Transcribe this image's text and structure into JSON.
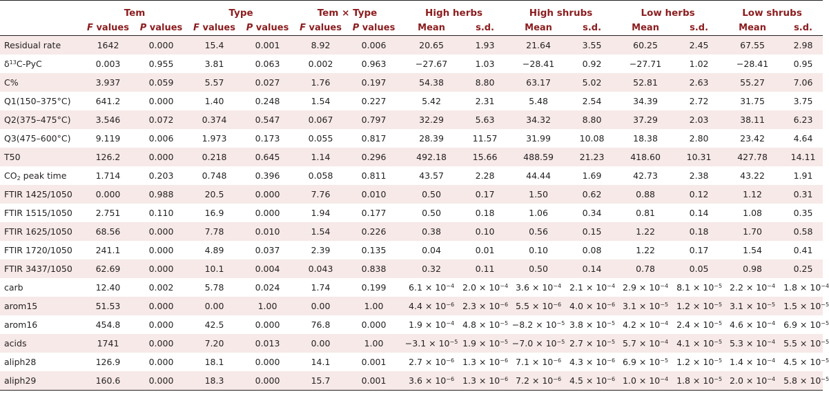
{
  "groups": {
    "tem": "Tem",
    "type": "Type",
    "interaction": "Tem × Type",
    "high_herbs": "High herbs",
    "high_shrubs": "High shrubs",
    "low_herbs": "Low herbs",
    "low_shrubs": "Low shrubs"
  },
  "subheaders": {
    "f_letter": "F",
    "p_letter": "P",
    "values_word": " values",
    "mean": "Mean",
    "sd": "s.d."
  },
  "rows": [
    {
      "label": "Residual rate",
      "cells": [
        {
          "t": "1642"
        },
        {
          "t": "0.000"
        },
        {
          "t": "15.4"
        },
        {
          "t": "0.001"
        },
        {
          "t": "8.92"
        },
        {
          "t": "0.006"
        },
        {
          "t": "20.65"
        },
        {
          "t": "1.93"
        },
        {
          "t": "21.64"
        },
        {
          "t": "3.55"
        },
        {
          "t": "60.25"
        },
        {
          "t": "2.45"
        },
        {
          "t": "67.55"
        },
        {
          "t": "2.98"
        }
      ]
    },
    {
      "label_pre": "δ",
      "label_sup": "13",
      "label_post": "C-PyC",
      "cells": [
        {
          "t": "0.003"
        },
        {
          "t": "0.955"
        },
        {
          "t": "3.81"
        },
        {
          "t": "0.063"
        },
        {
          "t": "0.002"
        },
        {
          "t": "0.963"
        },
        {
          "t": "−27.67"
        },
        {
          "t": "1.03"
        },
        {
          "t": "−28.41"
        },
        {
          "t": "0.92"
        },
        {
          "t": "−27.71"
        },
        {
          "t": "1.02"
        },
        {
          "t": "−28.41"
        },
        {
          "t": "0.95"
        }
      ]
    },
    {
      "label": "C%",
      "cells": [
        {
          "t": "3.937"
        },
        {
          "t": "0.059"
        },
        {
          "t": "5.57"
        },
        {
          "t": "0.027"
        },
        {
          "t": "1.76"
        },
        {
          "t": "0.197"
        },
        {
          "t": "54.38"
        },
        {
          "t": "8.80"
        },
        {
          "t": "63.17"
        },
        {
          "t": "5.02"
        },
        {
          "t": "52.81"
        },
        {
          "t": "2.63"
        },
        {
          "t": "55.27"
        },
        {
          "t": "7.06"
        }
      ]
    },
    {
      "label": "Q1(150–375°C)",
      "cells": [
        {
          "t": "641.2"
        },
        {
          "t": "0.000"
        },
        {
          "t": "1.40"
        },
        {
          "t": "0.248"
        },
        {
          "t": "1.54"
        },
        {
          "t": "0.227"
        },
        {
          "t": "5.42"
        },
        {
          "t": "2.31"
        },
        {
          "t": "5.48"
        },
        {
          "t": "2.54"
        },
        {
          "t": "34.39"
        },
        {
          "t": "2.72"
        },
        {
          "t": "31.75"
        },
        {
          "t": "3.75"
        }
      ]
    },
    {
      "label": "Q2(375–475°C)",
      "cells": [
        {
          "t": "3.546"
        },
        {
          "t": "0.072"
        },
        {
          "t": "0.374"
        },
        {
          "t": "0.547"
        },
        {
          "t": "0.067"
        },
        {
          "t": "0.797"
        },
        {
          "t": "32.29"
        },
        {
          "t": "5.63"
        },
        {
          "t": "34.32"
        },
        {
          "t": "8.80"
        },
        {
          "t": "37.29"
        },
        {
          "t": "2.03"
        },
        {
          "t": "38.11"
        },
        {
          "t": "6.23"
        }
      ]
    },
    {
      "label": "Q3(475–600°C)",
      "cells": [
        {
          "t": "9.119"
        },
        {
          "t": "0.006"
        },
        {
          "t": "1.973"
        },
        {
          "t": "0.173"
        },
        {
          "t": "0.055"
        },
        {
          "t": "0.817"
        },
        {
          "t": "28.39"
        },
        {
          "t": "11.57"
        },
        {
          "t": "31.99"
        },
        {
          "t": "10.08"
        },
        {
          "t": "18.38"
        },
        {
          "t": "2.80"
        },
        {
          "t": "23.42"
        },
        {
          "t": "4.64"
        }
      ]
    },
    {
      "label": "T50",
      "cells": [
        {
          "t": "126.2"
        },
        {
          "t": "0.000"
        },
        {
          "t": "0.218"
        },
        {
          "t": "0.645"
        },
        {
          "t": "1.14"
        },
        {
          "t": "0.296"
        },
        {
          "t": "492.18"
        },
        {
          "t": "15.66"
        },
        {
          "t": "488.59"
        },
        {
          "t": "21.23"
        },
        {
          "t": "418.60"
        },
        {
          "t": "10.31"
        },
        {
          "t": "427.78"
        },
        {
          "t": "14.11"
        }
      ]
    },
    {
      "label_pre": "CO",
      "label_sub": "2",
      "label_post": " peak time",
      "cells": [
        {
          "t": "1.714"
        },
        {
          "t": "0.203"
        },
        {
          "t": "0.748"
        },
        {
          "t": "0.396"
        },
        {
          "t": "0.058"
        },
        {
          "t": "0.811"
        },
        {
          "t": "43.57"
        },
        {
          "t": "2.28"
        },
        {
          "t": "44.44"
        },
        {
          "t": "1.69"
        },
        {
          "t": "42.73"
        },
        {
          "t": "2.38"
        },
        {
          "t": "43.22"
        },
        {
          "t": "1.91"
        }
      ]
    },
    {
      "label": "FTIR 1425/1050",
      "cells": [
        {
          "t": "0.000"
        },
        {
          "t": "0.988"
        },
        {
          "t": "20.5"
        },
        {
          "t": "0.000"
        },
        {
          "t": "7.76"
        },
        {
          "t": "0.010"
        },
        {
          "t": "0.50"
        },
        {
          "t": "0.17"
        },
        {
          "t": "1.50"
        },
        {
          "t": "0.62"
        },
        {
          "t": "0.88"
        },
        {
          "t": "0.12"
        },
        {
          "t": "1.12"
        },
        {
          "t": "0.31"
        }
      ]
    },
    {
      "label": "FTIR 1515/1050",
      "cells": [
        {
          "t": "2.751"
        },
        {
          "t": "0.110"
        },
        {
          "t": "16.9"
        },
        {
          "t": "0.000"
        },
        {
          "t": "1.94"
        },
        {
          "t": "0.177"
        },
        {
          "t": "0.50"
        },
        {
          "t": "0.18"
        },
        {
          "t": "1.06"
        },
        {
          "t": "0.34"
        },
        {
          "t": "0.81"
        },
        {
          "t": "0.14"
        },
        {
          "t": "1.08"
        },
        {
          "t": "0.35"
        }
      ]
    },
    {
      "label": "FTIR 1625/1050",
      "cells": [
        {
          "t": "68.56"
        },
        {
          "t": "0.000"
        },
        {
          "t": "7.78"
        },
        {
          "t": "0.010"
        },
        {
          "t": "1.54"
        },
        {
          "t": "0.226"
        },
        {
          "t": "0.38"
        },
        {
          "t": "0.10"
        },
        {
          "t": "0.56"
        },
        {
          "t": "0.15"
        },
        {
          "t": "1.22"
        },
        {
          "t": "0.18"
        },
        {
          "t": "1.70"
        },
        {
          "t": "0.58"
        }
      ]
    },
    {
      "label": "FTIR 1720/1050",
      "cells": [
        {
          "t": "241.1"
        },
        {
          "t": "0.000"
        },
        {
          "t": "4.89"
        },
        {
          "t": "0.037"
        },
        {
          "t": "2.39"
        },
        {
          "t": "0.135"
        },
        {
          "t": "0.04"
        },
        {
          "t": "0.01"
        },
        {
          "t": "0.10"
        },
        {
          "t": "0.08"
        },
        {
          "t": "1.22"
        },
        {
          "t": "0.17"
        },
        {
          "t": "1.54"
        },
        {
          "t": "0.41"
        }
      ]
    },
    {
      "label": "FTIR 3437/1050",
      "cells": [
        {
          "t": "62.69"
        },
        {
          "t": "0.000"
        },
        {
          "t": "10.1"
        },
        {
          "t": "0.004"
        },
        {
          "t": "0.043"
        },
        {
          "t": "0.838"
        },
        {
          "t": "0.32"
        },
        {
          "t": "0.11"
        },
        {
          "t": "0.50"
        },
        {
          "t": "0.14"
        },
        {
          "t": "0.78"
        },
        {
          "t": "0.05"
        },
        {
          "t": "0.98"
        },
        {
          "t": "0.25"
        }
      ]
    },
    {
      "label": "carb",
      "cells": [
        {
          "t": "12.40"
        },
        {
          "t": "0.002"
        },
        {
          "t": "5.78"
        },
        {
          "t": "0.024"
        },
        {
          "t": "1.74"
        },
        {
          "t": "0.199"
        },
        {
          "m": "6.1",
          "e": "−4"
        },
        {
          "m": "2.0",
          "e": "−4"
        },
        {
          "m": "3.6",
          "e": "−4"
        },
        {
          "m": "2.1",
          "e": "−4"
        },
        {
          "m": "2.9",
          "e": "−4"
        },
        {
          "m": "8.1",
          "e": "−5"
        },
        {
          "m": "2.2",
          "e": "−4"
        },
        {
          "m": "1.8",
          "e": "−4"
        }
      ]
    },
    {
      "label": "arom15",
      "cells": [
        {
          "t": "51.53"
        },
        {
          "t": "0.000"
        },
        {
          "t": "0.00"
        },
        {
          "t": "1.00"
        },
        {
          "t": "0.00"
        },
        {
          "t": "1.00"
        },
        {
          "m": "4.4",
          "e": "−6"
        },
        {
          "m": "2.3",
          "e": "−6"
        },
        {
          "m": "5.5",
          "e": "−6"
        },
        {
          "m": "4.0",
          "e": "−6"
        },
        {
          "m": "3.1",
          "e": "−5"
        },
        {
          "m": "1.2",
          "e": "−5"
        },
        {
          "m": "3.1",
          "e": "−5"
        },
        {
          "m": "1.5",
          "e": "−5"
        }
      ]
    },
    {
      "label": "arom16",
      "cells": [
        {
          "t": "454.8"
        },
        {
          "t": "0.000"
        },
        {
          "t": "42.5"
        },
        {
          "t": "0.000"
        },
        {
          "t": "76.8"
        },
        {
          "t": "0.000"
        },
        {
          "m": "1.9",
          "e": "−4"
        },
        {
          "m": "4.8",
          "e": "−5"
        },
        {
          "m": "−8.2",
          "e": "−5"
        },
        {
          "m": "3.8",
          "e": "−5"
        },
        {
          "m": "4.2",
          "e": "−4"
        },
        {
          "m": "2.4",
          "e": "−5"
        },
        {
          "m": "4.6",
          "e": "−4"
        },
        {
          "m": "6.9",
          "e": "−5"
        }
      ]
    },
    {
      "label": "acids",
      "cells": [
        {
          "t": "1741"
        },
        {
          "t": "0.000"
        },
        {
          "t": "7.20"
        },
        {
          "t": "0.013"
        },
        {
          "t": "0.00"
        },
        {
          "t": "1.00"
        },
        {
          "m": "−3.1",
          "e": "−5"
        },
        {
          "m": "1.9",
          "e": "−5"
        },
        {
          "m": "−7.0",
          "e": "−5"
        },
        {
          "m": "2.7",
          "e": "−5"
        },
        {
          "m": "5.7",
          "e": "−4"
        },
        {
          "m": "4.1",
          "e": "−5"
        },
        {
          "m": "5.3",
          "e": "−4"
        },
        {
          "m": "5.5",
          "e": "−5"
        }
      ]
    },
    {
      "label": "aliph28",
      "cells": [
        {
          "t": "126.9"
        },
        {
          "t": "0.000"
        },
        {
          "t": "18.1"
        },
        {
          "t": "0.000"
        },
        {
          "t": "14.1"
        },
        {
          "t": "0.001"
        },
        {
          "m": "2.7",
          "e": "−6"
        },
        {
          "m": "1.3",
          "e": "−6"
        },
        {
          "m": "7.1",
          "e": "−6"
        },
        {
          "m": "4.3",
          "e": "−6"
        },
        {
          "m": "6.9",
          "e": "−5"
        },
        {
          "m": "1.2",
          "e": "−5"
        },
        {
          "m": "1.4",
          "e": "−4"
        },
        {
          "m": "4.5",
          "e": "−5"
        }
      ]
    },
    {
      "label": "aliph29",
      "cells": [
        {
          "t": "160.6"
        },
        {
          "t": "0.000"
        },
        {
          "t": "18.3"
        },
        {
          "t": "0.000"
        },
        {
          "t": "15.7"
        },
        {
          "t": "0.001"
        },
        {
          "m": "3.6",
          "e": "−6"
        },
        {
          "m": "1.3",
          "e": "−6"
        },
        {
          "m": "7.2",
          "e": "−6"
        },
        {
          "m": "4.5",
          "e": "−6"
        },
        {
          "m": "1.0",
          "e": "−4"
        },
        {
          "m": "1.8",
          "e": "−5"
        },
        {
          "m": "2.0",
          "e": "−4"
        },
        {
          "m": "5.8",
          "e": "−5"
        }
      ]
    }
  ],
  "sci": {
    "times": " × ",
    "base": "10"
  }
}
